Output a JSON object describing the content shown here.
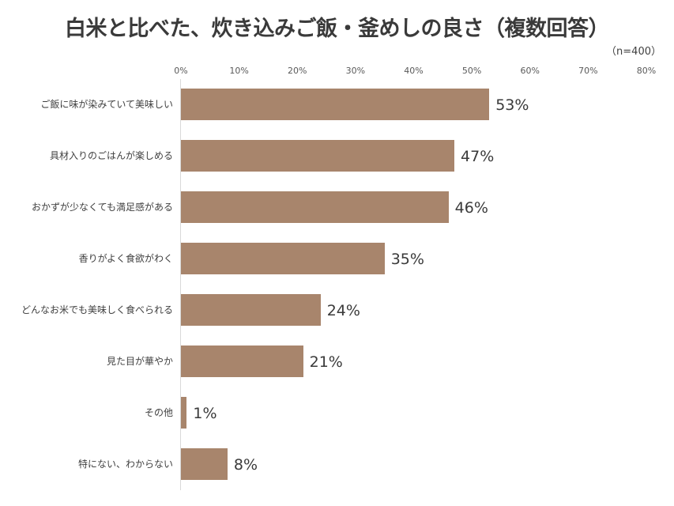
{
  "chart_data": {
    "type": "bar",
    "orientation": "horizontal",
    "title": "白米と比べた、炊き込みご飯・釜めしの良さ（複数回答）",
    "subtitle": "（n=400）",
    "xlabel": "",
    "ylabel": "",
    "xlim": [
      0,
      80
    ],
    "x_ticks": [
      "0%",
      "10%",
      "20%",
      "30%",
      "40%",
      "50%",
      "60%",
      "70%",
      "80%"
    ],
    "grid": false,
    "legend": null,
    "categories": [
      "ご飯に味が染みていて美味しい",
      "具材入りのごはんが楽しめる",
      "おかずが少なくても満足感がある",
      "香りがよく食欲がわく",
      "どんなお米でも美味しく食べられる",
      "見た目が華やか",
      "その他",
      "特にない、わからない"
    ],
    "values": [
      53,
      47,
      46,
      35,
      24,
      21,
      1,
      8
    ],
    "value_labels": [
      "53%",
      "47%",
      "46%",
      "35%",
      "24%",
      "21%",
      "1%",
      "8%"
    ],
    "bar_color": "#a8856c"
  }
}
